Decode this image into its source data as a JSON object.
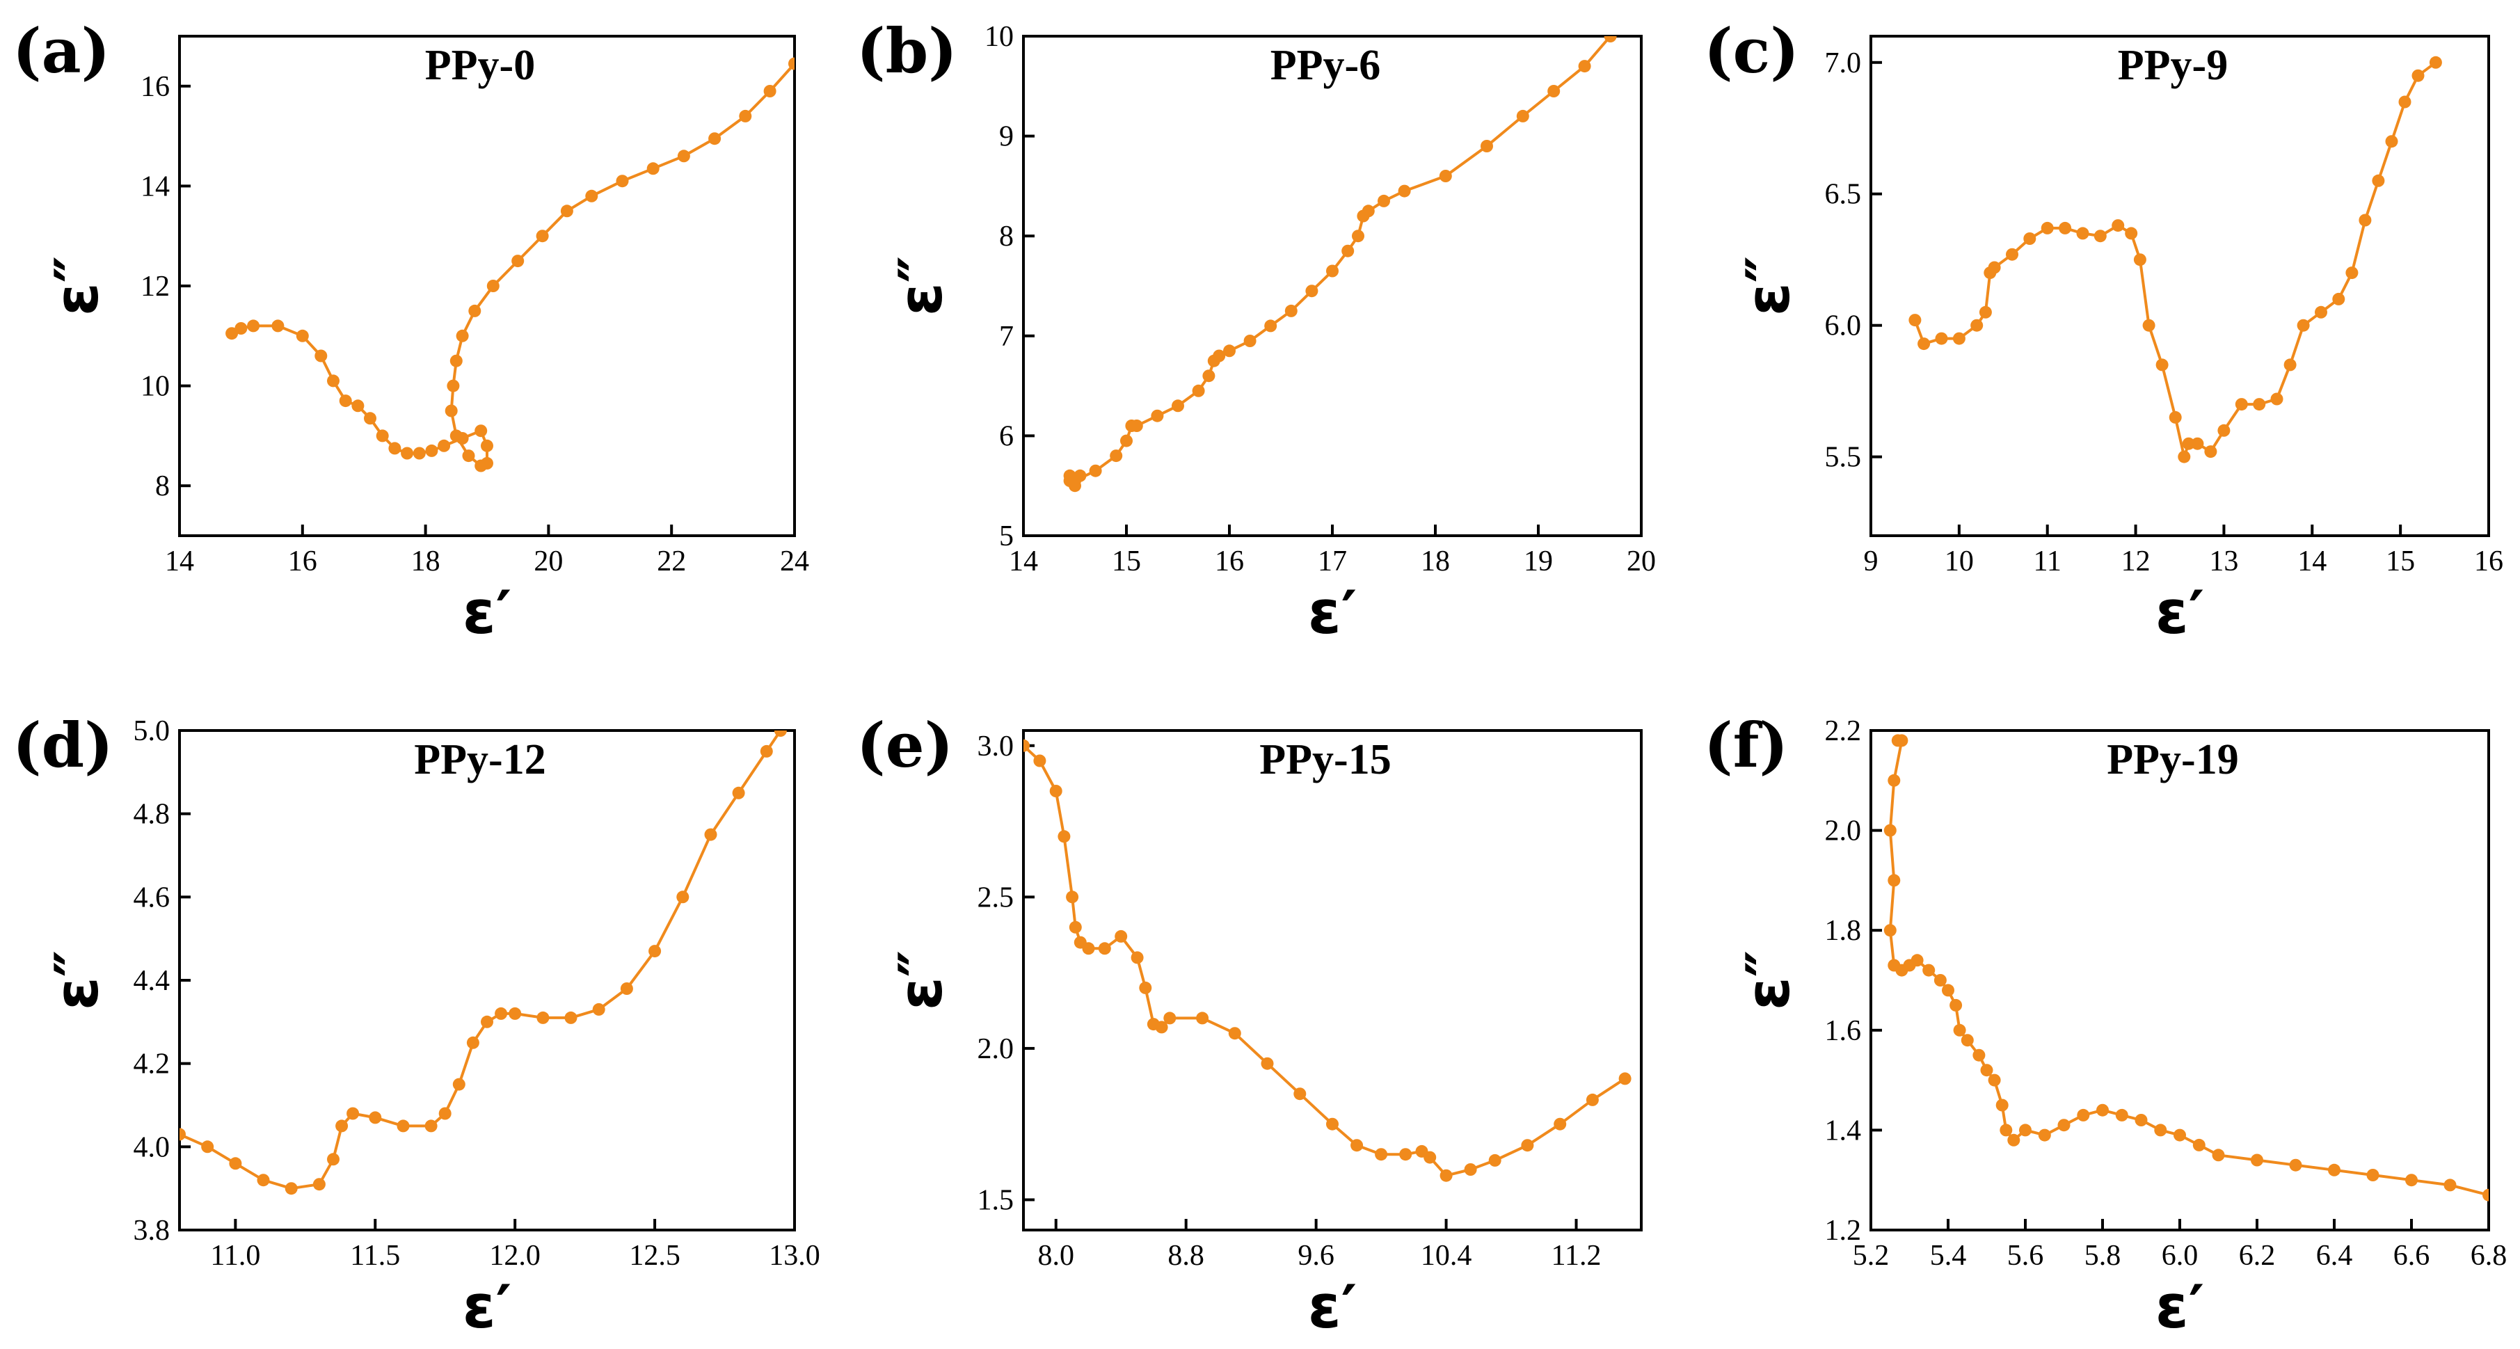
{
  "figure": {
    "series_color": "#F08A1C",
    "marker": "filled-circle",
    "line": "thin-connecting-line"
  },
  "chart_data": [
    {
      "type": "scatter",
      "panel_label": "(a)",
      "title": "PPy-0",
      "xlabel": "ε′",
      "ylabel": "ε″",
      "xlim": [
        14,
        24
      ],
      "ylim": [
        7.0,
        17.0
      ],
      "xticks": [
        14,
        16,
        18,
        20,
        22,
        24
      ],
      "yticks": [
        8,
        10,
        12,
        14,
        16
      ],
      "x": [
        14.85,
        15.0,
        15.2,
        15.6,
        16.0,
        16.3,
        16.5,
        16.7,
        16.9,
        17.1,
        17.3,
        17.5,
        17.7,
        17.9,
        18.1,
        18.3,
        18.6,
        18.9,
        19.0,
        19.0,
        18.9,
        18.7,
        18.5,
        18.42,
        18.45,
        18.5,
        18.6,
        18.8,
        19.1,
        19.5,
        19.9,
        20.3,
        20.7,
        21.2,
        21.7,
        22.2,
        22.7,
        23.2,
        23.6,
        24.0
      ],
      "y": [
        11.05,
        11.15,
        11.2,
        11.2,
        11.0,
        10.6,
        10.1,
        9.7,
        9.6,
        9.35,
        9.0,
        8.75,
        8.65,
        8.65,
        8.7,
        8.8,
        8.95,
        9.1,
        8.8,
        8.45,
        8.4,
        8.6,
        9.0,
        9.5,
        10.0,
        10.5,
        11.0,
        11.5,
        12.0,
        12.5,
        13.0,
        13.5,
        13.8,
        14.1,
        14.35,
        14.6,
        14.95,
        15.4,
        15.9,
        16.45
      ]
    },
    {
      "type": "scatter",
      "panel_label": "(b)",
      "title": "PPy-6",
      "xlabel": "ε′",
      "ylabel": "ε″",
      "xlim": [
        14,
        20
      ],
      "ylim": [
        5,
        10
      ],
      "xticks": [
        14,
        15,
        16,
        17,
        18,
        19,
        20
      ],
      "yticks": [
        5,
        6,
        7,
        8,
        9,
        10
      ],
      "x": [
        14.45,
        14.5,
        14.55,
        14.45,
        14.5,
        14.7,
        14.9,
        15.0,
        15.05,
        15.1,
        15.3,
        15.5,
        15.7,
        15.8,
        15.85,
        15.9,
        16.0,
        16.2,
        16.4,
        16.6,
        16.8,
        17.0,
        17.15,
        17.25,
        17.3,
        17.35,
        17.5,
        17.7,
        18.1,
        18.5,
        18.85,
        19.15,
        19.45,
        19.7
      ],
      "y": [
        5.6,
        5.5,
        5.6,
        5.55,
        5.55,
        5.65,
        5.8,
        5.95,
        6.1,
        6.1,
        6.2,
        6.3,
        6.45,
        6.6,
        6.75,
        6.8,
        6.85,
        6.95,
        7.1,
        7.25,
        7.45,
        7.65,
        7.85,
        8.0,
        8.2,
        8.25,
        8.35,
        8.45,
        8.6,
        8.9,
        9.2,
        9.45,
        9.7,
        10.0
      ]
    },
    {
      "type": "scatter",
      "panel_label": "(c)",
      "title": "PPy-9",
      "xlabel": "ε′",
      "ylabel": "ε″",
      "xlim": [
        9,
        16
      ],
      "ylim": [
        5.2,
        7.1
      ],
      "xticks": [
        9,
        10,
        11,
        12,
        13,
        14,
        15,
        16
      ],
      "yticks": [
        5.5,
        6.0,
        6.5,
        7.0
      ],
      "x": [
        9.5,
        9.6,
        9.8,
        10.0,
        10.2,
        10.3,
        10.35,
        10.4,
        10.6,
        10.8,
        11.0,
        11.2,
        11.4,
        11.6,
        11.8,
        11.95,
        12.05,
        12.15,
        12.3,
        12.45,
        12.55,
        12.6,
        12.7,
        12.85,
        13.0,
        13.2,
        13.4,
        13.6,
        13.75,
        13.9,
        14.1,
        14.3,
        14.45,
        14.6,
        14.75,
        14.9,
        15.05,
        15.2,
        15.4
      ],
      "y": [
        6.02,
        5.93,
        5.95,
        5.95,
        6.0,
        6.05,
        6.2,
        6.22,
        6.27,
        6.33,
        6.37,
        6.37,
        6.35,
        6.34,
        6.38,
        6.35,
        6.25,
        6.0,
        5.85,
        5.65,
        5.5,
        5.55,
        5.55,
        5.52,
        5.6,
        5.7,
        5.7,
        5.72,
        5.85,
        6.0,
        6.05,
        6.1,
        6.2,
        6.4,
        6.55,
        6.7,
        6.85,
        6.95,
        7.0
      ]
    },
    {
      "type": "scatter",
      "panel_label": "(d)",
      "title": "PPy-12",
      "xlabel": "ε′",
      "ylabel": "ε″",
      "xlim": [
        10.8,
        13.0
      ],
      "ylim": [
        3.8,
        5.0
      ],
      "xticks": [
        11.0,
        11.5,
        12.0,
        12.5,
        13.0
      ],
      "yticks": [
        3.8,
        4.0,
        4.2,
        4.4,
        4.6,
        4.8,
        5.0
      ],
      "x": [
        10.8,
        10.9,
        11.0,
        11.1,
        11.2,
        11.3,
        11.35,
        11.38,
        11.42,
        11.5,
        11.6,
        11.7,
        11.75,
        11.8,
        11.85,
        11.9,
        11.95,
        12.0,
        12.1,
        12.2,
        12.3,
        12.4,
        12.5,
        12.6,
        12.7,
        12.8,
        12.9,
        12.95
      ],
      "y": [
        4.03,
        4.0,
        3.96,
        3.92,
        3.9,
        3.91,
        3.97,
        4.05,
        4.08,
        4.07,
        4.05,
        4.05,
        4.08,
        4.15,
        4.25,
        4.3,
        4.32,
        4.32,
        4.31,
        4.31,
        4.33,
        4.38,
        4.47,
        4.6,
        4.75,
        4.85,
        4.95,
        5.0
      ]
    },
    {
      "type": "scatter",
      "panel_label": "(e)",
      "title": "PPy-15",
      "xlabel": "ε′",
      "ylabel": "ε″",
      "xlim": [
        7.8,
        11.6
      ],
      "ylim": [
        1.4,
        3.05
      ],
      "xticks": [
        8.0,
        8.8,
        9.6,
        10.4,
        11.2
      ],
      "yticks": [
        1.5,
        2.0,
        2.5,
        3.0
      ],
      "x": [
        7.8,
        7.9,
        8.0,
        8.05,
        8.1,
        8.12,
        8.15,
        8.2,
        8.3,
        8.4,
        8.5,
        8.55,
        8.6,
        8.65,
        8.7,
        8.9,
        9.1,
        9.3,
        9.5,
        9.7,
        9.85,
        10.0,
        10.15,
        10.25,
        10.3,
        10.4,
        10.55,
        10.7,
        10.9,
        11.1,
        11.3,
        11.5
      ],
      "y": [
        3.0,
        2.95,
        2.85,
        2.7,
        2.5,
        2.4,
        2.35,
        2.33,
        2.33,
        2.37,
        2.3,
        2.2,
        2.08,
        2.07,
        2.1,
        2.1,
        2.05,
        1.95,
        1.85,
        1.75,
        1.68,
        1.65,
        1.65,
        1.66,
        1.64,
        1.58,
        1.6,
        1.63,
        1.68,
        1.75,
        1.83,
        1.9
      ]
    },
    {
      "type": "scatter",
      "panel_label": "(f)",
      "title": "PPy-19",
      "xlabel": "ε′",
      "ylabel": "ε″",
      "xlim": [
        5.2,
        6.8
      ],
      "ylim": [
        1.2,
        2.2
      ],
      "xticks": [
        5.2,
        5.4,
        5.6,
        5.8,
        6.0,
        6.2,
        6.4,
        6.6,
        6.8
      ],
      "yticks": [
        1.2,
        1.4,
        1.6,
        1.8,
        2.0,
        2.2
      ],
      "x": [
        5.27,
        5.28,
        5.26,
        5.25,
        5.26,
        5.25,
        5.26,
        5.28,
        5.3,
        5.32,
        5.35,
        5.38,
        5.4,
        5.42,
        5.43,
        5.45,
        5.48,
        5.5,
        5.52,
        5.54,
        5.55,
        5.57,
        5.6,
        5.65,
        5.7,
        5.75,
        5.8,
        5.85,
        5.9,
        5.95,
        6.0,
        6.05,
        6.1,
        6.2,
        6.3,
        6.4,
        6.5,
        6.6,
        6.7,
        6.8
      ],
      "y": [
        2.18,
        2.18,
        2.1,
        2.0,
        1.9,
        1.8,
        1.73,
        1.72,
        1.73,
        1.74,
        1.72,
        1.7,
        1.68,
        1.65,
        1.6,
        1.58,
        1.55,
        1.52,
        1.5,
        1.45,
        1.4,
        1.38,
        1.4,
        1.39,
        1.41,
        1.43,
        1.44,
        1.43,
        1.42,
        1.4,
        1.39,
        1.37,
        1.35,
        1.34,
        1.33,
        1.32,
        1.31,
        1.3,
        1.29,
        1.27
      ]
    }
  ]
}
